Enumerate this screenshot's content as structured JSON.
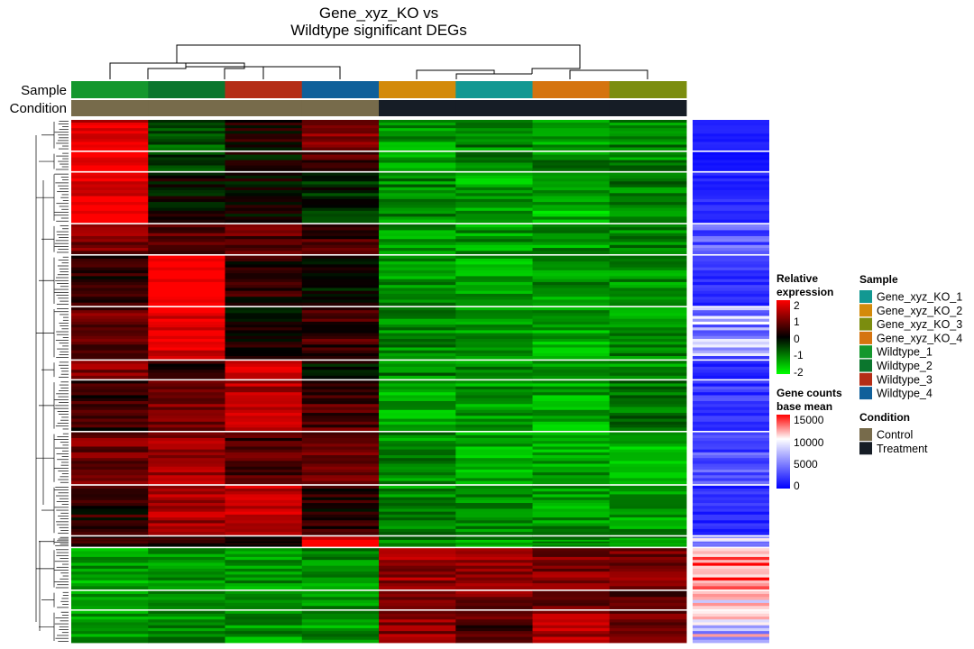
{
  "title_lines": [
    "Gene_xyz_KO vs",
    "Wildtype significant DEGs"
  ],
  "row_labels": {
    "sample": "Sample",
    "condition": "Condition"
  },
  "chart_data": {
    "type": "heatmap",
    "title": "Gene_xyz_KO vs Wildtype significant DEGs",
    "columns": [
      "Wildtype_1",
      "Wildtype_2",
      "Wildtype_3",
      "Wildtype_4",
      "Gene_xyz_KO_2",
      "Gene_xyz_KO_1",
      "Gene_xyz_KO_4",
      "Gene_xyz_KO_3"
    ],
    "column_condition": [
      "Control",
      "Control",
      "Control",
      "Control",
      "Treatment",
      "Treatment",
      "Treatment",
      "Treatment"
    ],
    "row_clusters": [
      {
        "cluster": 1,
        "values": [
          1.7,
          -0.7,
          0.2,
          1.0,
          -1.2,
          -1.0,
          -1.3,
          -1.0
        ]
      },
      {
        "cluster": 2,
        "values": [
          2.0,
          -0.5,
          0.0,
          0.6,
          -1.3,
          -1.1,
          -1.1,
          -1.1
        ]
      },
      {
        "cluster": 3,
        "values": [
          1.9,
          0.0,
          0.0,
          -0.3,
          -1.1,
          -1.3,
          -1.4,
          -1.0
        ]
      },
      {
        "cluster": 4,
        "values": [
          1.0,
          0.7,
          0.7,
          0.5,
          -1.2,
          -1.2,
          -1.2,
          -1.0
        ]
      },
      {
        "cluster": 5,
        "values": [
          0.3,
          2.0,
          0.3,
          0.0,
          -1.2,
          -1.3,
          -1.2,
          -1.1
        ]
      },
      {
        "cluster": 6,
        "values": [
          0.8,
          1.8,
          0.1,
          0.5,
          -1.1,
          -1.2,
          -1.3,
          -1.1
        ]
      },
      {
        "cluster": 7,
        "values": [
          1.0,
          0.4,
          1.9,
          -0.1,
          -1.0,
          -1.1,
          -1.2,
          -1.1
        ]
      },
      {
        "cluster": 8,
        "values": [
          0.4,
          0.9,
          1.4,
          0.6,
          -1.3,
          -1.2,
          -1.3,
          -0.9
        ]
      },
      {
        "cluster": 9,
        "values": [
          0.9,
          1.2,
          0.6,
          0.7,
          -1.1,
          -1.3,
          -1.3,
          -1.4
        ]
      },
      {
        "cluster": 10,
        "values": [
          0.3,
          1.3,
          1.6,
          0.3,
          -1.1,
          -1.2,
          -1.2,
          -1.2
        ]
      },
      {
        "cluster": 11,
        "values": [
          0.5,
          0.3,
          0.4,
          1.9,
          -1.1,
          -1.2,
          -1.1,
          -1.2
        ]
      },
      {
        "cluster": 12,
        "values": [
          -1.3,
          -1.2,
          -1.2,
          -1.1,
          1.2,
          1.1,
          1.0,
          0.9
        ]
      },
      {
        "cluster": 13,
        "values": [
          -1.3,
          -1.2,
          -1.3,
          -1.2,
          1.0,
          0.9,
          0.8,
          0.6
        ]
      },
      {
        "cluster": 14,
        "values": [
          -1.2,
          -1.1,
          -1.2,
          -1.2,
          1.1,
          0.6,
          1.3,
          0.8
        ]
      }
    ],
    "gene_counts_base_mean": [
      400,
      300,
      600,
      1500,
      800,
      2500,
      600,
      900,
      1200,
      700,
      3000,
      9000,
      6000,
      5000
    ],
    "legends": {
      "relative_expression": {
        "title_lines": [
          "Relative",
          "expression"
        ],
        "ticks": [
          "2",
          "1",
          "0",
          "-1",
          "-2"
        ],
        "range": [
          -2,
          2
        ]
      },
      "gene_counts_base_mean": {
        "title_lines": [
          "Gene counts",
          "base mean"
        ],
        "ticks": [
          "15000",
          "10000",
          "5000",
          "0"
        ],
        "range": [
          0,
          15000
        ]
      },
      "sample": {
        "title": "Sample",
        "entries": [
          "Gene_xyz_KO_1",
          "Gene_xyz_KO_2",
          "Gene_xyz_KO_3",
          "Gene_xyz_KO_4",
          "Wildtype_1",
          "Wildtype_2",
          "Wildtype_3",
          "Wildtype_4"
        ]
      },
      "condition": {
        "title": "Condition",
        "entries": [
          "Control",
          "Treatment"
        ]
      }
    }
  },
  "colors": {
    "samples": {
      "Gene_xyz_KO_1": "#129892",
      "Gene_xyz_KO_2": "#D38A0A",
      "Gene_xyz_KO_3": "#7B8D0F",
      "Gene_xyz_KO_4": "#D5740F",
      "Wildtype_1": "#14972D",
      "Wildtype_2": "#0B762D",
      "Wildtype_3": "#B42D16",
      "Wildtype_4": "#10609A"
    },
    "conditions": {
      "Control": "#776B4B",
      "Treatment": "#161D26"
    },
    "expression_scale": {
      "low": "#00FF00",
      "mid": "#000000",
      "high": "#FF0000"
    },
    "count_scale": {
      "low": "#0000FF",
      "mid": "#FFFFFF",
      "high": "#FF0000"
    }
  }
}
